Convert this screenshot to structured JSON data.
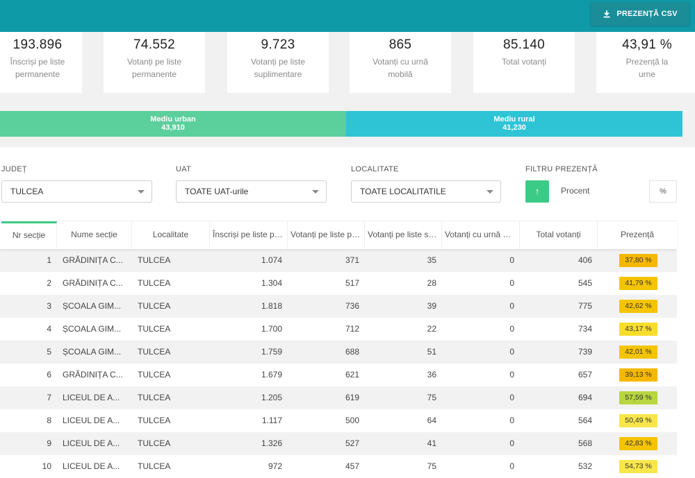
{
  "header": {
    "csv_button_label": "PREZENȚĂ CSV",
    "csv_icon": "download-icon"
  },
  "stats": [
    {
      "value": "193.896",
      "label": "Înscriși pe liste permanente"
    },
    {
      "value": "74.552",
      "label": "Votanți pe liste permanente"
    },
    {
      "value": "9.723",
      "label": "Votanți pe liste suplimentare"
    },
    {
      "value": "865",
      "label": "Votanți cu urnă mobilă"
    },
    {
      "value": "85.140",
      "label": "Total votanți"
    },
    {
      "value": "43,91 %",
      "label": "Prezență la urne"
    }
  ],
  "mediu": {
    "urban": {
      "label": "Mediu urban",
      "value": "43,910",
      "color": "#5bcf9c"
    },
    "rural": {
      "label": "Mediu rural",
      "value": "41,230",
      "color": "#2ec4d6"
    }
  },
  "filters": {
    "judet": {
      "label": "JUDEȚ",
      "value": "TULCEA"
    },
    "uat": {
      "label": "UAT",
      "value": "TOATE UAT-urile"
    },
    "localitate": {
      "label": "LOCALITATE",
      "value": "TOATE LOCALITATILE"
    },
    "prezenta": {
      "label": "FILTRU PREZENȚĂ",
      "sort_icon": "arrow-up-icon",
      "placeholder": "Procent",
      "unit": "%"
    }
  },
  "table": {
    "columns": [
      "Nr secție",
      "Nume secție",
      "Localitate",
      "Înscriși pe liste permanente",
      "Votanți pe liste permanente",
      "Votanți pe liste suplimentare",
      "Votanți cu urnă mobilă",
      "Total votanți",
      "Prezență"
    ],
    "rows": [
      {
        "nr": "1",
        "nume": "GRĂDINIȚA C...",
        "loc": "TULCEA",
        "inscrisi": "1.074",
        "vot_perm": "371",
        "vot_supl": "35",
        "urna": "0",
        "total": "406",
        "prezenta": "37,80 %",
        "color": "#f5b800"
      },
      {
        "nr": "2",
        "nume": "GRĂDINIȚA C...",
        "loc": "TULCEA",
        "inscrisi": "1.304",
        "vot_perm": "517",
        "vot_supl": "28",
        "urna": "0",
        "total": "545",
        "prezenta": "41,79 %",
        "color": "#f5c400"
      },
      {
        "nr": "3",
        "nume": "ȘCOALA GIM...",
        "loc": "TULCEA",
        "inscrisi": "1.818",
        "vot_perm": "736",
        "vot_supl": "39",
        "urna": "0",
        "total": "775",
        "prezenta": "42,62 %",
        "color": "#f5c400"
      },
      {
        "nr": "4",
        "nume": "ȘCOALA GIM...",
        "loc": "TULCEA",
        "inscrisi": "1.700",
        "vot_perm": "712",
        "vot_supl": "22",
        "urna": "0",
        "total": "734",
        "prezenta": "43,17 %",
        "color": "#f8dd2c"
      },
      {
        "nr": "5",
        "nume": "ȘCOALA GIM...",
        "loc": "TULCEA",
        "inscrisi": "1.759",
        "vot_perm": "688",
        "vot_supl": "51",
        "urna": "0",
        "total": "739",
        "prezenta": "42,01 %",
        "color": "#f5c400"
      },
      {
        "nr": "6",
        "nume": "GRĂDINIȚA C...",
        "loc": "TULCEA",
        "inscrisi": "1.679",
        "vot_perm": "621",
        "vot_supl": "36",
        "urna": "0",
        "total": "657",
        "prezenta": "39,13 %",
        "color": "#f5b800"
      },
      {
        "nr": "7",
        "nume": "LICEUL DE A...",
        "loc": "TULCEA",
        "inscrisi": "1.205",
        "vot_perm": "619",
        "vot_supl": "75",
        "urna": "0",
        "total": "694",
        "prezenta": "57,59 %",
        "color": "#b7d540"
      },
      {
        "nr": "8",
        "nume": "LICEUL DE A...",
        "loc": "TULCEA",
        "inscrisi": "1.117",
        "vot_perm": "500",
        "vot_supl": "64",
        "urna": "0",
        "total": "564",
        "prezenta": "50,49 %",
        "color": "#f8e64a"
      },
      {
        "nr": "9",
        "nume": "LICEUL DE A...",
        "loc": "TULCEA",
        "inscrisi": "1.326",
        "vot_perm": "527",
        "vot_supl": "41",
        "urna": "0",
        "total": "568",
        "prezenta": "42,83 %",
        "color": "#f5c400"
      },
      {
        "nr": "10",
        "nume": "LICEUL DE A...",
        "loc": "TULCEA",
        "inscrisi": "972",
        "vot_perm": "457",
        "vot_supl": "75",
        "urna": "0",
        "total": "532",
        "prezenta": "54,73 %",
        "color": "#f8e64a"
      }
    ]
  }
}
